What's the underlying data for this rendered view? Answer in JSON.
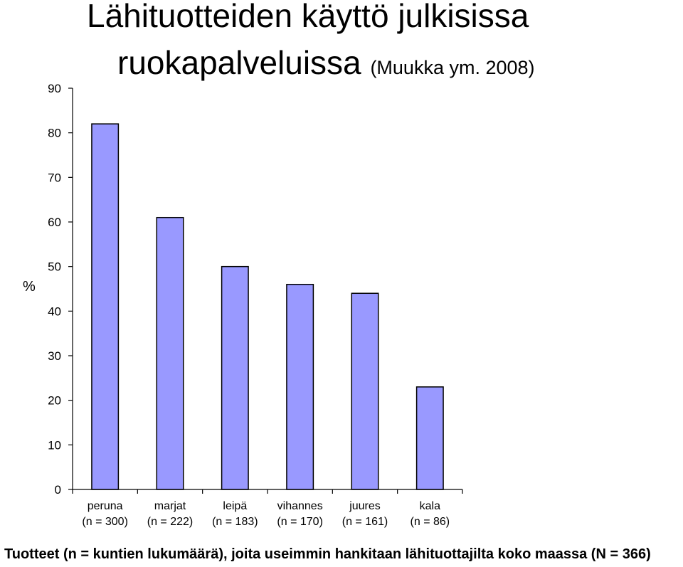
{
  "chart_data": {
    "type": "bar",
    "title": "Lähituotteiden käyttö julkisissa ruokapalveluissa",
    "title_line1": "Lähituotteiden käyttö julkisissa",
    "title_line2": "ruokapalveluissa",
    "subtitle": "(Muukka ym. 2008)",
    "ylabel": "%",
    "xlabel": "Tuotteet (n = kuntien lukumäärä), joita useimmin hankitaan lähituottajilta koko maassa (N = 366)",
    "categories": [
      "peruna",
      "marjat",
      "leipä",
      "vihannes",
      "juures",
      "kala"
    ],
    "category_counts": [
      "(n = 300)",
      "(n = 222)",
      "(n = 183)",
      "(n = 170)",
      "(n = 161)",
      "(n = 86)"
    ],
    "values": [
      82,
      61,
      50,
      46,
      44,
      23
    ],
    "ylim": [
      0,
      90
    ],
    "yticks": [
      0,
      10,
      20,
      30,
      40,
      50,
      60,
      70,
      80,
      90
    ],
    "grid": false,
    "bar_color": "#9999ff",
    "bar_stroke": "#000000"
  }
}
